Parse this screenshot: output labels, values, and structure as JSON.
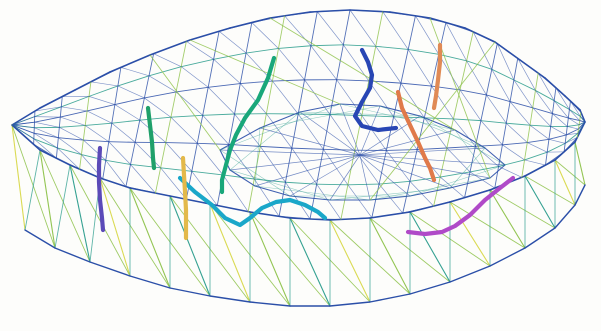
{
  "figure": {
    "kind": "3d-wireframe-mesh",
    "palette": {
      "background": "#fdfdfb",
      "wire_blue": "#2b4fa8",
      "wire_teal": "#2a9c8c",
      "wire_green": "#8dc24a",
      "wire_yellow": "#d8d84a"
    },
    "features": [
      {
        "id": "fault-blue-main",
        "color": "#2846b4"
      },
      {
        "id": "fault-orange-right",
        "color": "#e07a4a"
      },
      {
        "id": "fault-orange-tall",
        "color": "#e08a55"
      },
      {
        "id": "fault-green-left",
        "color": "#1fa06a"
      },
      {
        "id": "fault-green-center",
        "color": "#19a77a"
      },
      {
        "id": "fault-cyan-bottom",
        "color": "#1aa7c9"
      },
      {
        "id": "fault-magenta-right",
        "color": "#b04ac8"
      },
      {
        "id": "well-purple-left",
        "color": "#5b4ab8"
      },
      {
        "id": "well-yellow-left",
        "color": "#e3b94a"
      }
    ]
  }
}
